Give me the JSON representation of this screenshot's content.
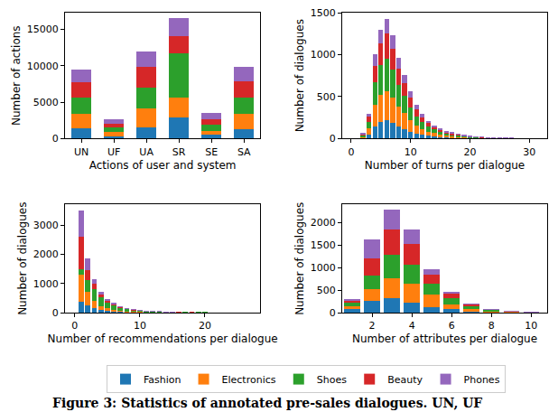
{
  "caption": "Figure 3: Statistics of annotated pre-sales dialogues. UN, UF",
  "chart_data": [
    {
      "type": "bar",
      "stacked": true,
      "grid": false,
      "legend": "bottom",
      "x_label": "Actions of user and system",
      "y_label": "Number of actions",
      "categories": [
        "UN",
        "UF",
        "UA",
        "SR",
        "SE",
        "SA"
      ],
      "ylim": [
        0,
        17300
      ],
      "yticks": [
        0,
        5000,
        10000,
        15000
      ],
      "series": [
        {
          "name": "Fashion",
          "color": "#1f77b4",
          "values": [
            1400,
            300,
            1600,
            2900,
            500,
            1300
          ]
        },
        {
          "name": "Electronics",
          "color": "#ff7f0e",
          "values": [
            2000,
            600,
            2500,
            2800,
            600,
            2100
          ]
        },
        {
          "name": "Shoes",
          "color": "#2ca02c",
          "values": [
            2200,
            600,
            2900,
            6000,
            800,
            2300
          ]
        },
        {
          "name": "Beauty",
          "color": "#d62728",
          "values": [
            2100,
            600,
            2800,
            2400,
            700,
            2200
          ]
        },
        {
          "name": "Phones",
          "color": "#9467bd",
          "values": [
            1800,
            600,
            2200,
            2400,
            900,
            1900
          ]
        }
      ]
    },
    {
      "type": "bar",
      "stacked": true,
      "grid": false,
      "legend": "bottom",
      "x_label": "Number of turns per dialogue",
      "y_label": "Number of dialogues",
      "x": [
        2,
        3,
        4,
        5,
        6,
        7,
        8,
        9,
        10,
        11,
        12,
        13,
        14,
        15,
        16,
        17,
        18,
        19,
        20,
        21,
        22,
        23,
        24,
        25,
        26,
        27,
        28,
        29,
        30,
        31
      ],
      "xlim": [
        -1.5,
        33
      ],
      "xticks": [
        0,
        10,
        20,
        30
      ],
      "ylim": [
        0,
        1500
      ],
      "yticks": [
        0,
        500,
        1000,
        1500
      ],
      "series": [
        {
          "name": "Fashion",
          "color": "#1f77b4",
          "values": [
            9,
            45,
            150,
            195,
            220,
            185,
            144,
            114,
            84,
            60,
            44,
            32,
            24,
            18,
            14,
            10,
            8,
            6,
            5,
            4,
            3,
            2,
            2,
            1,
            1,
            1,
            1,
            0,
            0,
            0
          ]
        },
        {
          "name": "Electronics",
          "color": "#ff7f0e",
          "values": [
            15,
            75,
            250,
            325,
            340,
            308,
            240,
            190,
            140,
            100,
            72,
            52,
            40,
            30,
            22,
            18,
            14,
            10,
            7,
            6,
            4,
            3,
            2,
            2,
            1,
            1,
            1,
            1,
            1,
            0
          ]
        },
        {
          "name": "Shoes",
          "color": "#2ca02c",
          "values": [
            16,
            81,
            270,
            351,
            390,
            332,
            259,
            205,
            151,
            108,
            78,
            57,
            43,
            32,
            24,
            19,
            15,
            11,
            8,
            7,
            5,
            4,
            3,
            2,
            2,
            1,
            1,
            1,
            1,
            1
          ]
        },
        {
          "name": "Beauty",
          "color": "#d62728",
          "values": [
            12,
            60,
            200,
            260,
            300,
            246,
            192,
            152,
            112,
            80,
            58,
            42,
            32,
            24,
            18,
            14,
            11,
            8,
            6,
            5,
            4,
            3,
            2,
            2,
            1,
            1,
            1,
            1,
            0,
            1
          ]
        },
        {
          "name": "Phones",
          "color": "#9467bd",
          "values": [
            8,
            39,
            130,
            169,
            180,
            159,
            125,
            99,
            73,
            52,
            38,
            27,
            21,
            16,
            12,
            9,
            7,
            5,
            4,
            3,
            2,
            2,
            1,
            1,
            1,
            1,
            0,
            0,
            0,
            0
          ]
        }
      ]
    },
    {
      "type": "bar",
      "stacked": true,
      "grid": false,
      "legend": "bottom",
      "x_label": "Number of recommendations per dialogue",
      "y_label": "Number of dialogues",
      "x": [
        1,
        2,
        3,
        4,
        5,
        6,
        7,
        8,
        9,
        10,
        11,
        12,
        13,
        14,
        15,
        16,
        17,
        18,
        19,
        20
      ],
      "xlim": [
        -1.5,
        28.5
      ],
      "xticks": [
        0,
        10,
        20
      ],
      "ylim": [
        0,
        3700
      ],
      "yticks": [
        0,
        1000,
        2000,
        3000
      ],
      "series": [
        {
          "name": "Fashion",
          "color": "#1f77b4",
          "values": [
            380,
            250,
            150,
            90,
            55,
            35,
            25,
            15,
            10,
            7,
            5,
            3,
            2,
            2,
            1,
            1,
            1,
            0,
            0,
            0
          ]
        },
        {
          "name": "Electronics",
          "color": "#ff7f0e",
          "values": [
            920,
            450,
            250,
            140,
            85,
            55,
            35,
            25,
            15,
            10,
            7,
            5,
            3,
            2,
            2,
            1,
            1,
            1,
            1,
            0
          ]
        },
        {
          "name": "Shoes",
          "color": "#2ca02c",
          "values": [
            200,
            400,
            400,
            300,
            210,
            150,
            105,
            70,
            50,
            35,
            22,
            17,
            12,
            8,
            5,
            4,
            3,
            2,
            2,
            2
          ]
        },
        {
          "name": "Beauty",
          "color": "#d62728",
          "values": [
            1100,
            350,
            180,
            90,
            55,
            35,
            20,
            12,
            10,
            5,
            4,
            3,
            2,
            2,
            1,
            1,
            0,
            1,
            0,
            0
          ]
        },
        {
          "name": "Phones",
          "color": "#9467bd",
          "values": [
            900,
            400,
            170,
            80,
            45,
            25,
            15,
            8,
            5,
            3,
            2,
            2,
            1,
            1,
            1,
            0,
            0,
            0,
            0,
            0
          ]
        }
      ]
    },
    {
      "type": "bar",
      "stacked": true,
      "grid": false,
      "legend": "bottom",
      "x_label": "Number of attributes per dialogue",
      "y_label": "Number of dialogues",
      "x": [
        1,
        2,
        3,
        4,
        5,
        6,
        7,
        8,
        9,
        10
      ],
      "xlim": [
        0.5,
        10.8
      ],
      "xticks": [
        2,
        4,
        6,
        8,
        10
      ],
      "ylim": [
        0,
        2400
      ],
      "yticks": [
        0,
        500,
        1000,
        1500,
        2000
      ],
      "series": [
        {
          "name": "Fashion",
          "color": "#1f77b4",
          "values": [
            80,
            270,
            330,
            220,
            130,
            80,
            30,
            10,
            5,
            2
          ]
        },
        {
          "name": "Electronics",
          "color": "#ff7f0e",
          "values": [
            70,
            260,
            430,
            420,
            270,
            110,
            50,
            20,
            7,
            3
          ]
        },
        {
          "name": "Shoes",
          "color": "#2ca02c",
          "values": [
            70,
            300,
            520,
            420,
            250,
            140,
            60,
            25,
            8,
            3
          ]
        },
        {
          "name": "Beauty",
          "color": "#d62728",
          "values": [
            40,
            370,
            570,
            460,
            200,
            90,
            35,
            10,
            3,
            1
          ]
        },
        {
          "name": "Phones",
          "color": "#9467bd",
          "values": [
            40,
            420,
            430,
            330,
            120,
            50,
            15,
            5,
            2,
            1
          ]
        }
      ]
    }
  ]
}
